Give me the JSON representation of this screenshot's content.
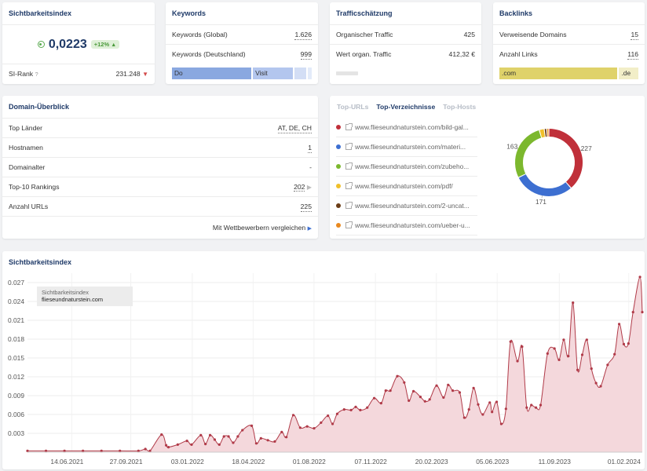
{
  "sichtbarkeit": {
    "title": "Sichtbarkeitsindex",
    "value": "0,0223",
    "change": "+12%",
    "si_rank_label": "SI-Rank",
    "si_rank_help": "?",
    "si_rank_value": "231.248"
  },
  "keywords": {
    "title": "Keywords",
    "rows": [
      {
        "label": "Keywords (Global)",
        "value": "1.626"
      },
      {
        "label": "Keywords (Deutschland)",
        "value": "999"
      }
    ],
    "bar": [
      {
        "label": "Do",
        "share": 0.57,
        "color": "#8aa8e0"
      },
      {
        "label": "Visit",
        "share": 0.29,
        "color": "#b3c6ee"
      },
      {
        "label": "",
        "share": 0.08,
        "color": "#d3def5"
      },
      {
        "label": "",
        "share": 0.03,
        "color": "#e3ebf9"
      }
    ]
  },
  "traffic": {
    "title": "Trafficschätzung",
    "rows": [
      {
        "label": "Organischer Traffic",
        "value": "425"
      },
      {
        "label": "Wert organ. Traffic",
        "value": "412,32 €"
      }
    ]
  },
  "backlinks": {
    "title": "Backlinks",
    "rows": [
      {
        "label": "Verweisende Domains",
        "value": "15"
      },
      {
        "label": "Anzahl Links",
        "value": "116"
      }
    ],
    "bar": [
      {
        "label": ".com",
        "share": 0.86,
        "color": "#dfd26a"
      },
      {
        "label": ".de",
        "share": 0.14,
        "color": "#f2eec8"
      }
    ]
  },
  "overview": {
    "title": "Domain-Überblick",
    "rows": [
      {
        "label": "Top Länder",
        "value": "AT, DE, CH"
      },
      {
        "label": "Hostnamen",
        "value": "1"
      },
      {
        "label": "Domainalter",
        "value": "-"
      },
      {
        "label": "Top-10 Rankings",
        "value": "202"
      },
      {
        "label": "Anzahl URLs",
        "value": "225"
      }
    ],
    "compare_link": "Mit Wettbewerbern vergleichen"
  },
  "topdirs": {
    "tabs": [
      "Top-URLs",
      "Top-Verzeichnisse",
      "Top-Hosts"
    ],
    "active_tab": 1,
    "items": [
      {
        "text": "www.flieseundnaturstein.com/bild-gal...",
        "color": "#c0303a"
      },
      {
        "text": "www.flieseundnaturstein.com/materi...",
        "color": "#3d6fd1"
      },
      {
        "text": "www.flieseundnaturstein.com/zubeho...",
        "color": "#7cb82e"
      },
      {
        "text": "www.flieseundnaturstein.com/pdf/",
        "color": "#f0c02a"
      },
      {
        "text": "www.flieseundnaturstein.com/2-uncat...",
        "color": "#6b3d16"
      },
      {
        "text": "www.flieseundnaturstein.com/ueber-u...",
        "color": "#e9891f"
      }
    ],
    "donut": [
      {
        "value": 227,
        "color": "#c0303a",
        "label": "227"
      },
      {
        "value": 171,
        "color": "#3d6fd1",
        "label": "171"
      },
      {
        "value": 163,
        "color": "#7cb82e",
        "label": "163"
      },
      {
        "value": 14,
        "color": "#f0c02a",
        "label": ""
      },
      {
        "value": 7,
        "color": "#6b3d16",
        "label": ""
      },
      {
        "value": 6,
        "color": "#e9891f",
        "label": ""
      }
    ]
  },
  "chart_card": {
    "title": "Sichtbarkeitsindex"
  },
  "chart_data": {
    "type": "area",
    "legend": {
      "line1": "Sichtbarkeitsindex",
      "line2": "flieseundnaturstein.com"
    },
    "ylim": [
      0,
      0.0285
    ],
    "yticks": [
      0.003,
      0.006,
      0.009,
      0.012,
      0.015,
      0.018,
      0.021,
      0.024,
      0.027
    ],
    "ytick_labels": [
      "0.003",
      "0.006",
      "0.009",
      "0.012",
      "0.015",
      "0.018",
      "0.021",
      "0.024",
      "0.027"
    ],
    "xtick_labels": [
      "14.06.2021",
      "27.09.2021",
      "03.01.2022",
      "18.04.2022",
      "01.08.2022",
      "07.11.2022",
      "20.02.2023",
      "05.06.2023",
      "11.09.2023",
      "01.02.2024"
    ],
    "xtick_pos": [
      0.072,
      0.168,
      0.268,
      0.367,
      0.466,
      0.566,
      0.665,
      0.764,
      0.865,
      0.978
    ],
    "line_color": "#b03a48",
    "fill_color": "#f4d8dc",
    "series": [
      [
        0.0,
        0.0002
      ],
      [
        0.04,
        0.0002
      ],
      [
        0.08,
        0.0002
      ],
      [
        0.12,
        0.0002
      ],
      [
        0.16,
        0.0002
      ],
      [
        0.2,
        0.0002
      ],
      [
        0.24,
        0.0002
      ],
      [
        0.255,
        0.0005
      ],
      [
        0.265,
        0.0002
      ],
      [
        0.29,
        0.0028
      ],
      [
        0.3,
        0.0011
      ],
      [
        0.305,
        0.0008
      ],
      [
        0.325,
        0.0012
      ],
      [
        0.345,
        0.0018
      ],
      [
        0.355,
        0.0012
      ],
      [
        0.375,
        0.0027
      ],
      [
        0.385,
        0.0013
      ],
      [
        0.395,
        0.0027
      ],
      [
        0.405,
        0.002
      ],
      [
        0.415,
        0.0012
      ],
      [
        0.425,
        0.0025
      ],
      [
        0.435,
        0.0025
      ],
      [
        0.445,
        0.0015
      ],
      [
        0.455,
        0.0025
      ],
      [
        0.465,
        0.0035
      ],
      [
        0.485,
        0.0042
      ],
      [
        0.495,
        0.0014
      ],
      [
        0.505,
        0.0022
      ],
      [
        0.52,
        0.0019
      ],
      [
        0.535,
        0.0017
      ],
      [
        0.55,
        0.0032
      ],
      [
        0.56,
        0.0024
      ],
      [
        0.575,
        0.0059
      ],
      [
        0.59,
        0.0039
      ],
      [
        0.605,
        0.0041
      ],
      [
        0.62,
        0.0038
      ],
      [
        0.635,
        0.0047
      ],
      [
        0.65,
        0.0058
      ],
      [
        0.66,
        0.0045
      ],
      [
        0.67,
        0.0061
      ],
      [
        0.685,
        0.0068
      ],
      [
        0.7,
        0.0067
      ],
      [
        0.71,
        0.0072
      ],
      [
        0.72,
        0.0067
      ],
      [
        0.735,
        0.0071
      ],
      [
        0.75,
        0.0086
      ],
      [
        0.765,
        0.0078
      ],
      [
        0.775,
        0.0098
      ],
      [
        0.785,
        0.0098
      ],
      [
        0.8,
        0.0121
      ],
      [
        0.815,
        0.0111
      ],
      [
        0.825,
        0.0082
      ],
      [
        0.835,
        0.0097
      ],
      [
        0.85,
        0.0088
      ],
      [
        0.86,
        0.0081
      ],
      [
        0.87,
        0.0084
      ],
      [
        0.885,
        0.0106
      ],
      [
        0.9,
        0.0087
      ],
      [
        0.91,
        0.0107
      ],
      [
        0.92,
        0.0098
      ],
      [
        0.935,
        0.0095
      ],
      [
        0.945,
        0.0055
      ],
      [
        0.955,
        0.0068
      ],
      [
        0.965,
        0.0102
      ],
      [
        0.975,
        0.0076
      ],
      [
        0.985,
        0.006
      ],
      [
        1.0,
        0.0079
      ],
      [
        1.005,
        0.0064
      ],
      [
        1.015,
        0.008
      ],
      [
        1.025,
        0.0045
      ],
      [
        1.035,
        0.0069
      ],
      [
        1.045,
        0.0176
      ],
      [
        1.06,
        0.0145
      ],
      [
        1.07,
        0.0168
      ],
      [
        1.08,
        0.0071
      ],
      [
        1.09,
        0.0075
      ],
      [
        1.1,
        0.0071
      ],
      [
        1.11,
        0.0075
      ],
      [
        1.125,
        0.0157
      ],
      [
        1.14,
        0.0165
      ],
      [
        1.15,
        0.0147
      ],
      [
        1.16,
        0.0179
      ],
      [
        1.17,
        0.0153
      ],
      [
        1.18,
        0.0238
      ],
      [
        1.19,
        0.0131
      ],
      [
        1.2,
        0.0155
      ],
      [
        1.21,
        0.0179
      ],
      [
        1.22,
        0.0133
      ],
      [
        1.23,
        0.011
      ],
      [
        1.24,
        0.0105
      ],
      [
        1.255,
        0.0139
      ],
      [
        1.27,
        0.0156
      ],
      [
        1.28,
        0.0204
      ],
      [
        1.29,
        0.0172
      ],
      [
        1.3,
        0.0173
      ],
      [
        1.31,
        0.0223
      ],
      [
        1.325,
        0.0279
      ],
      [
        1.33,
        0.0223
      ]
    ]
  }
}
